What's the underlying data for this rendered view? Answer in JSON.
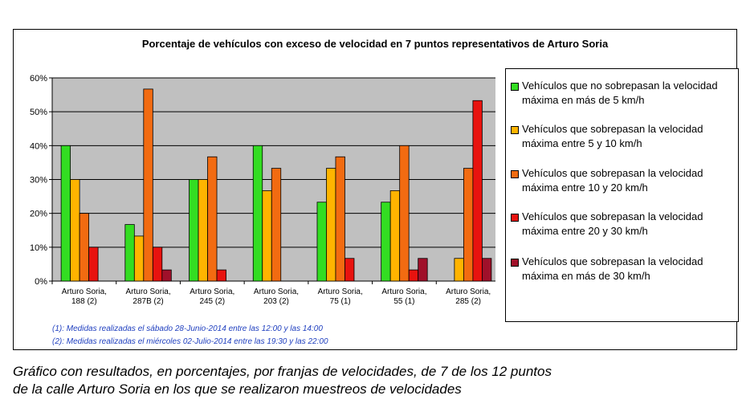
{
  "chart_data": {
    "type": "bar",
    "title": "Porcentaje de vehículos con exceso de velocidad en 7 puntos representativos de Arturo Soria",
    "categories": [
      [
        "Arturo Soria,",
        "188 (2)"
      ],
      [
        "Arturo Soria,",
        "287B (2)"
      ],
      [
        "Arturo Soria,",
        "245 (2)"
      ],
      [
        "Arturo Soria,",
        "203 (2)"
      ],
      [
        "Arturo Soria,",
        "75 (1)"
      ],
      [
        "Arturo Soria,",
        "55 (1)"
      ],
      [
        "Arturo Soria,",
        "285 (2)"
      ]
    ],
    "series": [
      {
        "name": "Vehículos que no sobrepasan la velocidad máxima en más de 5 km/h",
        "color": "#33dd22",
        "values": [
          40,
          16.7,
          30,
          40,
          23.3,
          23.3,
          0
        ]
      },
      {
        "name": "Vehículos que sobrepasan la velocidad máxima entre 5 y 10 km/h",
        "color": "#ffb400",
        "values": [
          30,
          13.3,
          30,
          26.7,
          33.3,
          26.7,
          6.7
        ]
      },
      {
        "name": "Vehículos que sobrepasan la velocidad máxima entre 10 y 20 km/h",
        "color": "#f26b11",
        "values": [
          20,
          56.7,
          36.7,
          33.3,
          36.7,
          40,
          33.3
        ]
      },
      {
        "name": "Vehículos que sobrepasan la velocidad máxima entre 20 y 30 km/h",
        "color": "#e8130f",
        "values": [
          10,
          10,
          3.3,
          0,
          6.7,
          3.3,
          53.3
        ]
      },
      {
        "name": "Vehículos que sobrepasan la velocidad máxima en más de 30 km/h",
        "color": "#a0102a",
        "values": [
          0,
          3.3,
          0,
          0,
          0,
          6.7,
          6.7
        ]
      }
    ],
    "legend": [
      [
        "Vehículos que no sobrepasan la velocidad",
        "máxima en más de 5 km/h"
      ],
      [
        "Vehículos que sobrepasan la velocidad",
        "máxima entre 5 y 10 km/h"
      ],
      [
        "Vehículos que sobrepasan la velocidad",
        "máxima entre 10 y 20 km/h"
      ],
      [
        "Vehículos que sobrepasan la velocidad",
        "máxima entre 20 y 30 km/h"
      ],
      [
        "Vehículos que sobrepasan la velocidad",
        "máxima en más de 30 km/h"
      ]
    ],
    "y_ticks": [
      "0%",
      "10%",
      "20%",
      "30%",
      "40%",
      "50%",
      "60%"
    ],
    "ylim": [
      0,
      60
    ],
    "grid": true,
    "legend_position": "right",
    "plot_background": "#c0c0c0"
  },
  "notes": [
    "(1): Medidas realizadas el sábado 28-Junio-2014 entre las 12:00 y las 14:00",
    "(2): Medidas realizadas el miércoles 02-Julio-2014 entre las 19:30 y las 22:00"
  ],
  "caption": [
    "Gráfico con resultados, en porcentajes, por franjas de velocidades, de 7 de los 12 puntos",
    "de la calle Arturo Soria en los que se realizaron muestreos de velocidades"
  ]
}
